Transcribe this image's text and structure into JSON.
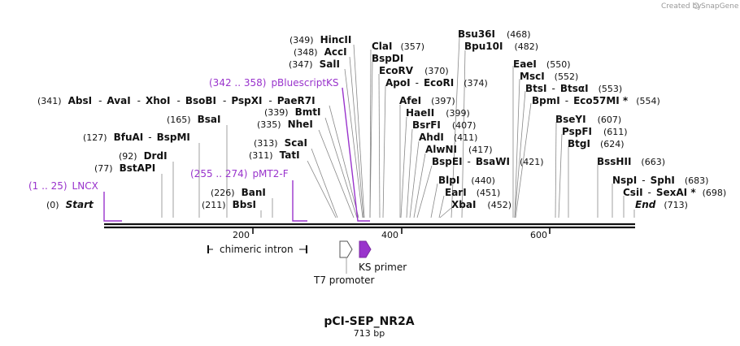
{
  "title": "pCI-SEP_NR2A",
  "length_label": "713 bp",
  "credit": {
    "created_by": "Created by",
    "brand": "SnapGene"
  },
  "sequence_length": 713,
  "ticks": [
    "200",
    "400",
    "600"
  ],
  "enzymes": [
    {
      "pos": "(0)",
      "name": "Start",
      "italic": true
    },
    {
      "pos": "(77)",
      "name": "BstAPI"
    },
    {
      "pos": "(92)",
      "name": "DrdI"
    },
    {
      "pos": "(127)",
      "name": "BfuAI",
      "dash": "-",
      "name2": "BspMI"
    },
    {
      "pos": "(165)",
      "name": "BsaI"
    },
    {
      "pos": "(211)",
      "name": "BbsI"
    },
    {
      "pos": "(226)",
      "name": "BanI"
    },
    {
      "pos": "(311)",
      "name": "TatI"
    },
    {
      "pos": "(313)",
      "name": "ScaI"
    },
    {
      "pos": "(335)",
      "name": "NheI"
    },
    {
      "pos": "(339)",
      "name": "BmtI"
    },
    {
      "pos": "(341)",
      "name": "AbsI",
      "dash": "-",
      "name2": "AvaI",
      "dash2": "-",
      "name3": "XhoI",
      "dash3": "-",
      "name4": "BsoBI",
      "dash4": "-",
      "name5": "PspXI",
      "dash5": "-",
      "name6": "PaeR7I"
    },
    {
      "pos": "(347)",
      "name": "SalI"
    },
    {
      "pos": "(348)",
      "name": "AccI"
    },
    {
      "pos": "(349)",
      "name": "HincII"
    },
    {
      "name": "ClaI",
      "pos": "(357)"
    },
    {
      "name": "BspDI"
    },
    {
      "name": "EcoRV",
      "pos": "(370)"
    },
    {
      "name": "ApoI",
      "dash": "-",
      "name2": "EcoRI",
      "pos": "(374)"
    },
    {
      "name": "AfeI",
      "pos": "(397)"
    },
    {
      "name": "HaeII",
      "pos": "(399)"
    },
    {
      "name": "BsrFI",
      "pos": "(407)"
    },
    {
      "name": "AhdI",
      "pos": "(411)"
    },
    {
      "name": "AlwNI",
      "pos": "(417)"
    },
    {
      "name": "BspEI",
      "dash": "-",
      "name2": "BsaWI",
      "pos": "(421)"
    },
    {
      "name": "BlpI",
      "pos": "(440)"
    },
    {
      "name": "EarI",
      "pos": "(451)"
    },
    {
      "name": "XbaI",
      "pos": "(452)"
    },
    {
      "name": "Bsu36I",
      "pos": "(468)"
    },
    {
      "name": "Bpu10I",
      "pos": "(482)"
    },
    {
      "name": "EaeI",
      "pos": "(550)"
    },
    {
      "name": "MscI",
      "pos": "(552)"
    },
    {
      "name": "BtsI",
      "dash": "-",
      "name2": "BtsαI",
      "pos": "(553)"
    },
    {
      "name": "BpmI",
      "dash": "-",
      "name2": "Eco57MI *",
      "pos": "(554)"
    },
    {
      "name": "BseYI",
      "pos": "(607)"
    },
    {
      "name": "PspFI",
      "pos": "(611)"
    },
    {
      "name": "BtgI",
      "pos": "(624)"
    },
    {
      "name": "BssHII",
      "pos": "(663)"
    },
    {
      "name": "NspI",
      "dash": "-",
      "name2": "SphI",
      "pos": "(683)"
    },
    {
      "name": "CsiI",
      "dash": "-",
      "name2": "SexAI *",
      "pos": "(698)"
    },
    {
      "name": "End",
      "italic": true,
      "pos": "(713)"
    }
  ],
  "primers": [
    {
      "range": "(1 .. 25)",
      "name": "LNCX"
    },
    {
      "range": "(255 .. 274)",
      "name": "pMT2-F"
    },
    {
      "range": "(342 .. 358)",
      "name": "pBluescriptKS"
    }
  ],
  "features": [
    {
      "name": "chimeric intron"
    },
    {
      "name": "T7 promoter"
    },
    {
      "name": "KS primer"
    }
  ],
  "colors": {
    "primer": "#9933cc",
    "ks_primer_fill": "#9933cc",
    "backbone": "#111111",
    "leader": "#888888"
  }
}
